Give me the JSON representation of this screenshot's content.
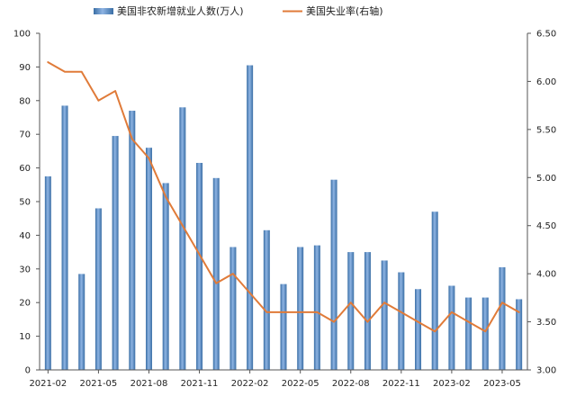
{
  "chart_data": {
    "type": "bar",
    "legend_position": "top",
    "grid": false,
    "x": [
      "2021-02",
      "2021-03",
      "2021-04",
      "2021-05",
      "2021-06",
      "2021-07",
      "2021-08",
      "2021-09",
      "2021-10",
      "2021-11",
      "2021-12",
      "2022-01",
      "2022-02",
      "2022-03",
      "2022-04",
      "2022-05",
      "2022-06",
      "2022-07",
      "2022-08",
      "2022-09",
      "2022-10",
      "2022-11",
      "2022-12",
      "2023-01",
      "2023-02",
      "2023-03",
      "2023-04",
      "2023-05",
      "2023-06"
    ],
    "x_tick_labels": [
      "2021-02",
      "2021-05",
      "2021-08",
      "2021-11",
      "2022-02",
      "2022-05",
      "2022-08",
      "2022-11",
      "2023-02",
      "2023-05"
    ],
    "series": [
      {
        "name": "美国非农新增就业人数(万人)",
        "type": "bar",
        "axis": "left",
        "color": "#4f81bd",
        "values": [
          57.5,
          78.5,
          28.5,
          48.0,
          69.5,
          77.0,
          66.0,
          55.5,
          78.0,
          61.5,
          57.0,
          36.5,
          90.5,
          41.5,
          25.5,
          36.5,
          37.0,
          56.5,
          35.0,
          35.0,
          32.5,
          29.0,
          24.0,
          47.0,
          25.0,
          21.5,
          21.5,
          30.5,
          21.0
        ]
      },
      {
        "name": "美国失业率(右轴)",
        "type": "line",
        "axis": "right",
        "color": "#e07b39",
        "values": [
          6.2,
          6.1,
          6.1,
          5.8,
          5.9,
          5.4,
          5.2,
          4.8,
          4.5,
          4.2,
          3.9,
          4.0,
          3.8,
          3.6,
          3.6,
          3.6,
          3.6,
          3.5,
          3.7,
          3.5,
          3.7,
          3.6,
          3.5,
          3.4,
          3.6,
          3.5,
          3.4,
          3.7,
          3.6
        ]
      }
    ],
    "y_left": {
      "range": [
        0,
        100
      ],
      "ticks": [
        "0",
        "10",
        "20",
        "30",
        "40",
        "50",
        "60",
        "70",
        "80",
        "90",
        "100"
      ]
    },
    "y_right": {
      "range": [
        3.0,
        6.5
      ],
      "ticks": [
        "3.00",
        "3.50",
        "4.00",
        "4.50",
        "5.00",
        "5.50",
        "6.00",
        "6.50"
      ]
    }
  }
}
